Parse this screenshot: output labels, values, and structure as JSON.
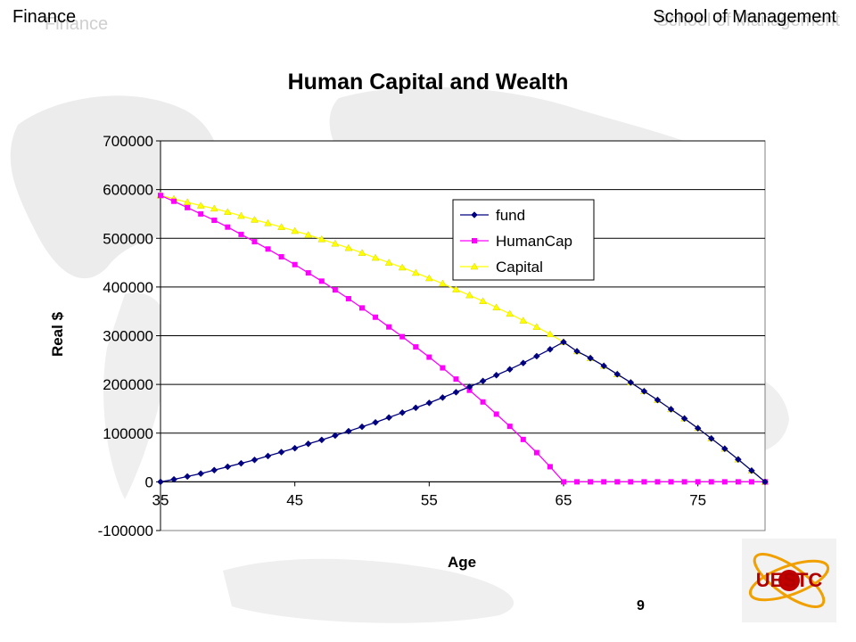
{
  "header": {
    "left": "Finance",
    "right": "School of Management"
  },
  "page_number": "9",
  "logo": {
    "text": "UESTC"
  },
  "colors": {
    "fund": "#000080",
    "HumanCap": "#ff00ff",
    "Capital": "#ffff00",
    "grid": "#000000"
  },
  "chart_data": {
    "type": "line",
    "title": "Human Capital and Wealth",
    "xlabel": "Age",
    "ylabel": "Real $",
    "xlim": [
      35,
      80
    ],
    "ylim": [
      -100000,
      700000
    ],
    "x_ticks": [
      35,
      45,
      55,
      65,
      75
    ],
    "y_ticks": [
      -100000,
      0,
      100000,
      200000,
      300000,
      400000,
      500000,
      600000,
      700000
    ],
    "grid": true,
    "legend_position": "top-right",
    "x": [
      35,
      36,
      37,
      38,
      39,
      40,
      41,
      42,
      43,
      44,
      45,
      46,
      47,
      48,
      49,
      50,
      51,
      52,
      53,
      54,
      55,
      56,
      57,
      58,
      59,
      60,
      61,
      62,
      63,
      64,
      65,
      66,
      67,
      68,
      69,
      70,
      71,
      72,
      73,
      74,
      75,
      76,
      77,
      78,
      79,
      80
    ],
    "series": [
      {
        "name": "fund",
        "marker": "diamond",
        "values": [
          0,
          5000,
          11000,
          17000,
          24000,
          31000,
          38000,
          45000,
          53000,
          61000,
          69000,
          78000,
          86000,
          95000,
          104000,
          113000,
          122000,
          132000,
          142000,
          152000,
          162000,
          173000,
          184000,
          195000,
          207000,
          219000,
          231000,
          244000,
          258000,
          272000,
          287000,
          268000,
          254000,
          238000,
          221000,
          204000,
          186000,
          168000,
          149000,
          130000,
          110000,
          89000,
          68000,
          46000,
          23000,
          0
        ]
      },
      {
        "name": "HumanCap",
        "marker": "square",
        "values": [
          588000,
          576000,
          563000,
          550000,
          537000,
          523000,
          508000,
          493000,
          478000,
          462000,
          446000,
          429000,
          412000,
          394000,
          376000,
          357000,
          338000,
          318000,
          298000,
          277000,
          256000,
          234000,
          211000,
          188000,
          164000,
          139000,
          114000,
          87000,
          60000,
          31000,
          0,
          0,
          0,
          0,
          0,
          0,
          0,
          0,
          0,
          0,
          0,
          0,
          0,
          0,
          0,
          0
        ]
      },
      {
        "name": "Capital",
        "marker": "triangle",
        "values": [
          588000,
          581000,
          574000,
          567000,
          561000,
          554000,
          546000,
          538000,
          531000,
          523000,
          515000,
          507000,
          498000,
          489000,
          480000,
          470000,
          460000,
          450000,
          440000,
          429000,
          418000,
          407000,
          395000,
          383000,
          371000,
          358000,
          345000,
          331000,
          318000,
          303000,
          287000,
          268000,
          254000,
          238000,
          221000,
          204000,
          186000,
          168000,
          149000,
          130000,
          110000,
          89000,
          68000,
          46000,
          23000,
          0
        ]
      }
    ]
  }
}
